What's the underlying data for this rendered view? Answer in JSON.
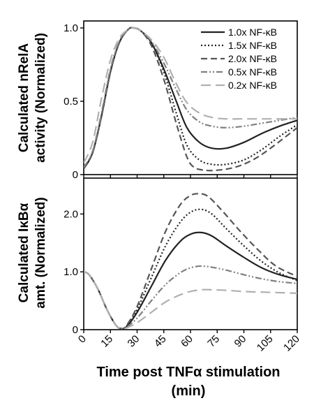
{
  "chart_data": [
    {
      "type": "line",
      "ylabel_line1": "Calculated nRelA",
      "ylabel_line2": "activity (Normalized)",
      "xlim": [
        0,
        120
      ],
      "ylim": [
        0,
        1.0
      ],
      "yticks": [
        0,
        0.5,
        1.0
      ],
      "ytick_labels": [
        "0",
        "0.5",
        "1.0"
      ],
      "grid": false,
      "legend_position": "top-right",
      "series": [
        {
          "name": "1.0x NF-κB",
          "color": "#222222",
          "dash": "solid",
          "x": [
            0,
            5,
            10,
            15,
            20,
            25,
            28,
            32,
            38,
            45,
            52,
            58,
            65,
            72,
            80,
            90,
            100,
            110,
            120
          ],
          "y": [
            0.04,
            0.15,
            0.4,
            0.7,
            0.9,
            0.99,
            1.0,
            0.98,
            0.9,
            0.72,
            0.5,
            0.32,
            0.22,
            0.18,
            0.18,
            0.22,
            0.28,
            0.33,
            0.37
          ]
        },
        {
          "name": "1.5x NF-κB",
          "color": "#222222",
          "dash": "dotted",
          "x": [
            0,
            5,
            10,
            15,
            20,
            25,
            28,
            32,
            38,
            45,
            52,
            58,
            65,
            72,
            80,
            90,
            100,
            110,
            120
          ],
          "y": [
            0.04,
            0.15,
            0.4,
            0.7,
            0.9,
            0.99,
            1.0,
            0.98,
            0.9,
            0.7,
            0.42,
            0.2,
            0.1,
            0.07,
            0.07,
            0.1,
            0.17,
            0.26,
            0.34
          ]
        },
        {
          "name": "2.0x NF-κB",
          "color": "#555555",
          "dash": "dashed",
          "x": [
            0,
            5,
            10,
            15,
            20,
            25,
            28,
            32,
            38,
            45,
            52,
            58,
            62,
            68,
            75,
            85,
            95,
            105,
            120
          ],
          "y": [
            0.04,
            0.15,
            0.4,
            0.7,
            0.9,
            0.99,
            1.0,
            0.98,
            0.88,
            0.65,
            0.35,
            0.12,
            0.05,
            0.03,
            0.03,
            0.05,
            0.1,
            0.18,
            0.32
          ]
        },
        {
          "name": "0.5x NF-κB",
          "color": "#808080",
          "dash": "dashdotdot",
          "x": [
            0,
            5,
            10,
            15,
            20,
            25,
            28,
            32,
            38,
            45,
            52,
            58,
            65,
            72,
            80,
            90,
            100,
            110,
            120
          ],
          "y": [
            0.05,
            0.16,
            0.42,
            0.72,
            0.91,
            0.99,
            1.0,
            0.98,
            0.91,
            0.76,
            0.58,
            0.44,
            0.36,
            0.33,
            0.32,
            0.33,
            0.35,
            0.37,
            0.39
          ]
        },
        {
          "name": "0.2x NF-κB",
          "color": "#b0b0b0",
          "dash": "longdash",
          "x": [
            0,
            5,
            10,
            15,
            20,
            25,
            28,
            32,
            38,
            45,
            52,
            58,
            65,
            72,
            80,
            90,
            100,
            110,
            120
          ],
          "y": [
            0.08,
            0.22,
            0.52,
            0.78,
            0.93,
            0.99,
            1.0,
            0.98,
            0.92,
            0.8,
            0.62,
            0.49,
            0.42,
            0.39,
            0.38,
            0.38,
            0.38,
            0.38,
            0.38
          ]
        }
      ]
    },
    {
      "type": "line",
      "ylabel_line1": "Calculated IκBα",
      "ylabel_line2": "amt. (Normalized)",
      "xlabel_line1": "Time post TNFα stimulation",
      "xlabel_line2": "(min)",
      "xlim": [
        0,
        120
      ],
      "ylim": [
        0,
        2.5
      ],
      "xticks": [
        0,
        15,
        30,
        45,
        60,
        75,
        90,
        105,
        120
      ],
      "xtick_labels": [
        "0",
        "15",
        "30",
        "45",
        "60",
        "75",
        "90",
        "105",
        "120"
      ],
      "yticks": [
        0,
        1.0,
        2.0
      ],
      "ytick_labels": [
        "0",
        "1.0",
        "2.0"
      ],
      "grid": false,
      "series": [
        {
          "name": "1.0x NF-κB",
          "color": "#222222",
          "dash": "solid",
          "x": [
            0,
            3,
            8,
            13,
            18,
            21,
            24,
            30,
            38,
            46,
            54,
            60,
            66,
            72,
            80,
            90,
            100,
            110,
            120
          ],
          "y": [
            1.0,
            0.95,
            0.7,
            0.35,
            0.08,
            0.02,
            0.05,
            0.3,
            0.75,
            1.2,
            1.52,
            1.65,
            1.68,
            1.62,
            1.45,
            1.25,
            1.07,
            0.95,
            0.87
          ]
        },
        {
          "name": "1.5x NF-κB",
          "color": "#222222",
          "dash": "dotted",
          "x": [
            0,
            3,
            8,
            13,
            18,
            21,
            24,
            30,
            38,
            46,
            54,
            60,
            66,
            72,
            80,
            90,
            100,
            110,
            120
          ],
          "y": [
            1.0,
            0.95,
            0.7,
            0.35,
            0.08,
            0.02,
            0.06,
            0.35,
            0.9,
            1.45,
            1.85,
            2.03,
            2.08,
            2.0,
            1.75,
            1.45,
            1.18,
            0.98,
            0.85
          ]
        },
        {
          "name": "2.0x NF-κB",
          "color": "#555555",
          "dash": "dashed",
          "x": [
            0,
            3,
            8,
            13,
            18,
            21,
            24,
            30,
            38,
            46,
            54,
            60,
            65,
            70,
            78,
            88,
            98,
            108,
            120
          ],
          "y": [
            1.0,
            0.95,
            0.7,
            0.35,
            0.08,
            0.02,
            0.07,
            0.4,
            1.05,
            1.7,
            2.15,
            2.32,
            2.35,
            2.3,
            2.05,
            1.7,
            1.38,
            1.1,
            0.92
          ]
        },
        {
          "name": "0.5x NF-κB",
          "color": "#808080",
          "dash": "dashdotdot",
          "x": [
            0,
            3,
            8,
            13,
            18,
            21,
            24,
            30,
            38,
            46,
            54,
            60,
            66,
            72,
            80,
            90,
            100,
            110,
            120
          ],
          "y": [
            1.0,
            0.95,
            0.7,
            0.35,
            0.08,
            0.02,
            0.04,
            0.2,
            0.5,
            0.78,
            0.98,
            1.07,
            1.1,
            1.08,
            1.03,
            0.95,
            0.88,
            0.83,
            0.8
          ]
        },
        {
          "name": "0.2x NF-κB",
          "color": "#b0b0b0",
          "dash": "longdash",
          "x": [
            0,
            3,
            8,
            13,
            18,
            21,
            24,
            30,
            38,
            46,
            54,
            60,
            66,
            72,
            80,
            90,
            100,
            110,
            120
          ],
          "y": [
            1.0,
            0.95,
            0.7,
            0.35,
            0.08,
            0.02,
            0.03,
            0.12,
            0.3,
            0.48,
            0.6,
            0.66,
            0.69,
            0.69,
            0.68,
            0.66,
            0.65,
            0.64,
            0.63
          ]
        }
      ]
    }
  ]
}
